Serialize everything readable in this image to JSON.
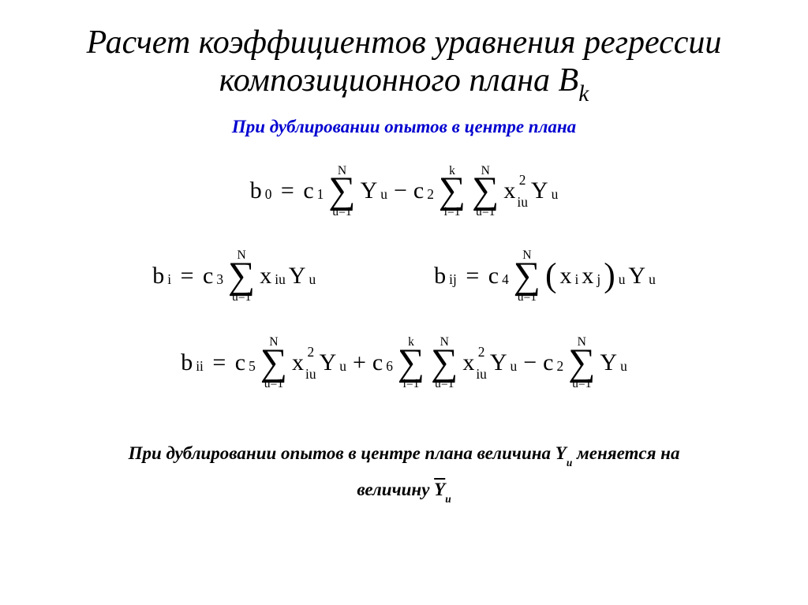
{
  "colors": {
    "text": "#000000",
    "subtitle": "#0000d0",
    "background": "#ffffff"
  },
  "title": {
    "line1": "Расчет коэффициентов уравнения регрессии",
    "line2_prefix": "композиционного плана В",
    "line2_sub": "k",
    "fontsize": 42,
    "style": "italic"
  },
  "subtitle": {
    "text": "При дублировании опытов в центре плана",
    "fontsize": 23,
    "style": "bold-italic"
  },
  "equations": {
    "sigma_glyph": "∑",
    "eq_b0": {
      "lhs_var": "b",
      "lhs_sub": "0",
      "t1_coef": "c",
      "t1_coef_sub": "1",
      "t1_sum_top": "N",
      "t1_sum_bot": "u=1",
      "t1_body_var": "Y",
      "t1_body_sub": "u",
      "t2_op": "−",
      "t2_coef": "c",
      "t2_coef_sub": "2",
      "t2_sum1_top": "k",
      "t2_sum1_bot": "i=1",
      "t2_sum2_top": "N",
      "t2_sum2_bot": "u=1",
      "t2_x": "x",
      "t2_x_sub": "iu",
      "t2_x_sup": "2",
      "t2_y": "Y",
      "t2_y_sub": "u"
    },
    "eq_bi": {
      "lhs_var": "b",
      "lhs_sub": "i",
      "coef": "c",
      "coef_sub": "3",
      "sum_top": "N",
      "sum_bot": "u=1",
      "x": "x",
      "x_sub": "iu",
      "y": "Y",
      "y_sub": "u"
    },
    "eq_bij": {
      "lhs_var": "b",
      "lhs_sub": "ij",
      "coef": "c",
      "coef_sub": "4",
      "sum_top": "N",
      "sum_bot": "u=1",
      "xi": "x",
      "xi_sub": "i",
      "xj": "x",
      "xj_sub": "j",
      "paren_sub": "u",
      "y": "Y",
      "y_sub": "u"
    },
    "eq_bii": {
      "lhs_var": "b",
      "lhs_sub": "ii",
      "t1_coef": "c",
      "t1_coef_sub": "5",
      "t1_sum_top": "N",
      "t1_sum_bot": "u=1",
      "t1_x": "x",
      "t1_x_sub": "iu",
      "t1_x_sup": "2",
      "t1_y": "Y",
      "t1_y_sub": "u",
      "t2_op": "+",
      "t2_coef": "c",
      "t2_coef_sub": "6",
      "t2_sum1_top": "k",
      "t2_sum1_bot": "i=1",
      "t2_sum2_top": "N",
      "t2_sum2_bot": "u=1",
      "t2_x": "x",
      "t2_x_sub": "iu",
      "t2_x_sup": "2",
      "t2_y": "Y",
      "t2_y_sub": "u",
      "t3_op": "−",
      "t3_coef": "c",
      "t3_coef_sub": "2",
      "t3_sum_top": "N",
      "t3_sum_bot": "u=1",
      "t3_y": "Y",
      "t3_y_sub": "u"
    }
  },
  "footer": {
    "line1_prefix": "При дублировании опытов в центре плана величина Y",
    "line1_sub": "u",
    "line1_suffix": "  меняется на",
    "line2_prefix": "величину ",
    "line2_var": "Y",
    "line2_sub": "u",
    "fontsize": 23
  }
}
